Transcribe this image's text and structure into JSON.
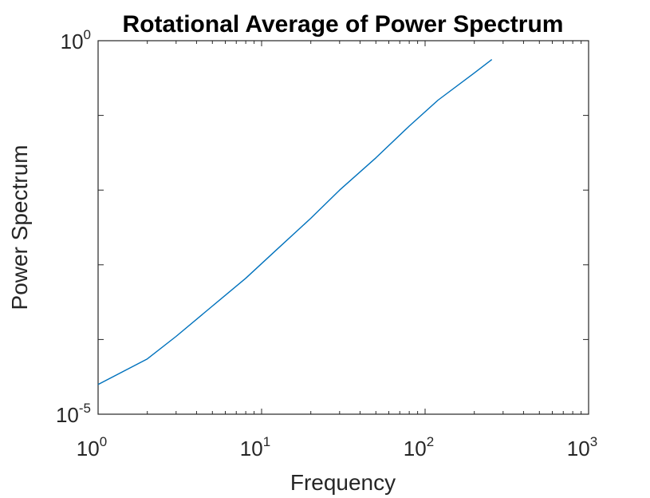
{
  "chart_data": {
    "type": "line",
    "title": "Rotational Average of Power Spectrum",
    "xlabel": "Frequency",
    "ylabel": "Power Spectrum",
    "xscale": "log",
    "yscale": "log",
    "xlim": [
      1,
      1000
    ],
    "ylim": [
      1e-05,
      1
    ],
    "grid": false,
    "x_ticks": [
      {
        "base": "10",
        "exp": "0"
      },
      {
        "base": "10",
        "exp": "1"
      },
      {
        "base": "10",
        "exp": "2"
      },
      {
        "base": "10",
        "exp": "3"
      }
    ],
    "y_ticks": [
      {
        "base": "10",
        "exp": "-5"
      },
      {
        "base": "10",
        "exp": "0"
      }
    ],
    "line_color": "#0072BD",
    "series": [
      {
        "x": [
          1,
          2,
          3,
          5,
          8,
          12,
          20,
          30,
          50,
          80,
          120,
          200,
          256
        ],
        "y": [
          2.5e-05,
          5.5e-05,
          0.00011,
          0.00028,
          0.00066,
          0.0015,
          0.0042,
          0.01,
          0.027,
          0.072,
          0.16,
          0.37,
          0.56
        ]
      }
    ]
  }
}
